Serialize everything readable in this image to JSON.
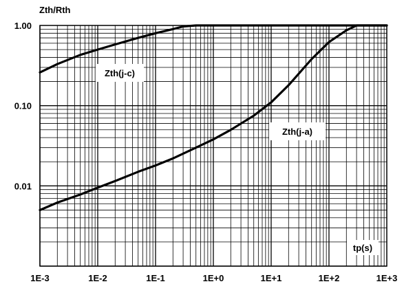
{
  "chart_data": {
    "type": "line",
    "ylabel": "Zth/Rth",
    "xlabel": "tp(s)",
    "x_scale": "log",
    "y_scale": "log",
    "xlim": [
      0.001,
      1000
    ],
    "ylim": [
      0.001,
      1.0
    ],
    "x_ticks": [
      "1E-3",
      "1E-2",
      "1E-1",
      "1E+0",
      "1E+1",
      "1E+2",
      "1E+3"
    ],
    "y_ticks": [
      "1.00",
      "0.10",
      "0.01"
    ],
    "grid": true,
    "series": [
      {
        "name": "Zth(j-c)",
        "x": [
          0.001,
          0.002,
          0.005,
          0.01,
          0.02,
          0.05,
          0.1,
          0.2,
          0.3,
          0.5,
          1,
          10,
          100,
          1000
        ],
        "y": [
          0.26,
          0.33,
          0.43,
          0.5,
          0.58,
          0.7,
          0.8,
          0.9,
          0.97,
          1.0,
          1.0,
          1.0,
          1.0,
          1.0
        ]
      },
      {
        "name": "Zth(j-a)",
        "x": [
          0.001,
          0.002,
          0.005,
          0.01,
          0.02,
          0.05,
          0.1,
          0.2,
          0.5,
          1,
          2,
          5,
          10,
          20,
          50,
          100,
          200,
          300,
          500,
          1000
        ],
        "y": [
          0.005,
          0.0062,
          0.0078,
          0.0095,
          0.0115,
          0.015,
          0.018,
          0.022,
          0.03,
          0.038,
          0.05,
          0.075,
          0.11,
          0.18,
          0.38,
          0.62,
          0.87,
          1.0,
          1.0,
          1.0
        ]
      }
    ]
  }
}
